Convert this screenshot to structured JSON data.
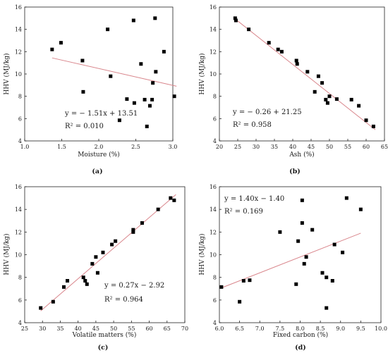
{
  "chart_data": [
    {
      "type": "scatter",
      "panel_label": "(a)",
      "xlabel": "Moisture (%)",
      "ylabel": "HHV (MJ/kg)",
      "xlim": [
        1.0,
        3.0
      ],
      "ylim": [
        4,
        16
      ],
      "xticks": [
        "1.0",
        "1.5",
        "2.0",
        "2.5",
        "3.0"
      ],
      "yticks": [
        "4",
        "6",
        "8",
        "10",
        "12",
        "14",
        "16"
      ],
      "points": [
        [
          1.37,
          12.2
        ],
        [
          1.49,
          12.8
        ],
        [
          1.78,
          11.2
        ],
        [
          1.79,
          8.4
        ],
        [
          2.12,
          14.0
        ],
        [
          2.16,
          9.8
        ],
        [
          2.28,
          5.85
        ],
        [
          2.38,
          7.75
        ],
        [
          2.47,
          14.8
        ],
        [
          2.48,
          7.4
        ],
        [
          2.57,
          10.9
        ],
        [
          2.62,
          7.7
        ],
        [
          2.65,
          5.3
        ],
        [
          2.69,
          7.15
        ],
        [
          2.72,
          7.7
        ],
        [
          2.73,
          9.2
        ],
        [
          2.76,
          15.0
        ],
        [
          2.77,
          10.2
        ],
        [
          2.88,
          12.0
        ],
        [
          3.02,
          8.0
        ]
      ],
      "fit": {
        "slope": -1.51,
        "intercept": 13.51,
        "x_range": [
          1.37,
          3.05
        ]
      },
      "equation": "y = − 1.51x + 13.51",
      "r2": "R² = 0.010"
    },
    {
      "type": "scatter",
      "panel_label": "(b)",
      "xlabel": "Ash (%)",
      "ylabel": "HHV (MJ/kg)",
      "xlim": [
        20,
        65
      ],
      "ylim": [
        4,
        16
      ],
      "xticks": [
        "20",
        "25",
        "30",
        "35",
        "40",
        "45",
        "50",
        "55",
        "60",
        "65"
      ],
      "yticks": [
        "4",
        "6",
        "8",
        "10",
        "12",
        "14",
        "16"
      ],
      "points": [
        [
          24.3,
          15.0
        ],
        [
          24.5,
          14.8
        ],
        [
          28.0,
          14.0
        ],
        [
          33.5,
          12.8
        ],
        [
          36.0,
          12.2
        ],
        [
          37.0,
          12.0
        ],
        [
          41.0,
          11.2
        ],
        [
          41.2,
          10.9
        ],
        [
          44.0,
          10.2
        ],
        [
          46.0,
          8.4
        ],
        [
          47.0,
          9.8
        ],
        [
          48.0,
          9.2
        ],
        [
          49.0,
          7.7
        ],
        [
          49.5,
          7.4
        ],
        [
          50.0,
          8.0
        ],
        [
          52.0,
          7.75
        ],
        [
          56.0,
          7.7
        ],
        [
          58.0,
          7.15
        ],
        [
          60.0,
          5.85
        ],
        [
          62.0,
          5.3
        ]
      ],
      "fit": {
        "slope": -0.26,
        "intercept": 21.25,
        "x_range": [
          24.0,
          62.5
        ]
      },
      "equation": "y = − 0.26 + 21.25",
      "r2": "R² = 0.958"
    },
    {
      "type": "scatter",
      "panel_label": "(c)",
      "xlabel": "Volatile matters (%)",
      "ylabel": "HHV (MJ/kg)",
      "xlim": [
        25,
        70
      ],
      "ylim": [
        4,
        16
      ],
      "xticks": [
        "25",
        "30",
        "35",
        "40",
        "45",
        "50",
        "55",
        "60",
        "65",
        "70"
      ],
      "yticks": [
        "4",
        "6",
        "8",
        "10",
        "12",
        "14",
        "16"
      ],
      "points": [
        [
          29.5,
          5.3
        ],
        [
          33.0,
          5.85
        ],
        [
          36.0,
          7.15
        ],
        [
          37.0,
          7.7
        ],
        [
          41.5,
          8.0
        ],
        [
          42.0,
          7.7
        ],
        [
          42.5,
          7.4
        ],
        [
          44.0,
          9.2
        ],
        [
          45.0,
          9.8
        ],
        [
          45.5,
          8.4
        ],
        [
          47.0,
          10.2
        ],
        [
          49.5,
          10.9
        ],
        [
          50.5,
          11.2
        ],
        [
          55.5,
          12.0
        ],
        [
          55.5,
          12.2
        ],
        [
          58.0,
          12.8
        ],
        [
          62.5,
          14.0
        ],
        [
          66.0,
          15.0
        ],
        [
          67.0,
          14.8
        ]
      ],
      "fit": {
        "slope": 0.27,
        "intercept": -2.92,
        "x_range": [
          29.5,
          67.5
        ]
      },
      "equation": "y = 0.27x − 2.92",
      "r2": "R² = 0.964"
    },
    {
      "type": "scatter",
      "panel_label": "(d)",
      "xlabel": "Fixed carbon (%)",
      "ylabel": "HHV (MJ/kg)",
      "xlim": [
        6.0,
        10.0
      ],
      "ylim": [
        4,
        16
      ],
      "xticks": [
        "6.0",
        "6.5",
        "7.0",
        "7.5",
        "8.0",
        "8.5",
        "9.0",
        "9.5",
        "10.0"
      ],
      "yticks": [
        "4",
        "6",
        "8",
        "10",
        "12",
        "14",
        "16"
      ],
      "points": [
        [
          6.05,
          7.15
        ],
        [
          6.5,
          5.85
        ],
        [
          6.6,
          7.7
        ],
        [
          6.75,
          7.75
        ],
        [
          7.5,
          12.0
        ],
        [
          7.9,
          7.4
        ],
        [
          7.95,
          11.2
        ],
        [
          8.05,
          14.8
        ],
        [
          8.05,
          12.8
        ],
        [
          8.1,
          9.2
        ],
        [
          8.15,
          9.8
        ],
        [
          8.3,
          12.2
        ],
        [
          8.55,
          8.4
        ],
        [
          8.65,
          8.0
        ],
        [
          8.65,
          5.3
        ],
        [
          8.8,
          7.7
        ],
        [
          8.85,
          10.9
        ],
        [
          9.05,
          10.2
        ],
        [
          9.15,
          15.0
        ],
        [
          9.5,
          14.0
        ]
      ],
      "fit": {
        "slope": 1.4,
        "intercept": -1.4,
        "x_range": [
          6.05,
          9.5
        ]
      },
      "equation": "y = 1.40x − 1.40",
      "r2": "R² = 0.169"
    }
  ]
}
